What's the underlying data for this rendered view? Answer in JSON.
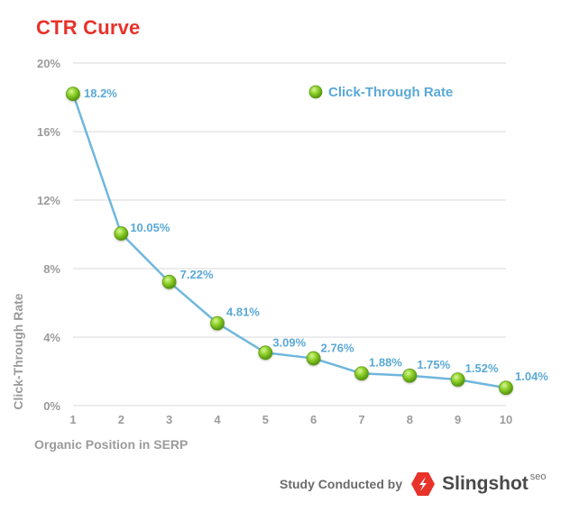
{
  "title": "CTR Curve",
  "footer": {
    "prefix": "Study Conducted by",
    "brand": "Slingshot",
    "brand_sup": "seo"
  },
  "colors": {
    "title": "#e8322a",
    "line": "#6fb7dd",
    "label": "#5aa9d6",
    "point": "#7cc31f",
    "grid": "#d9d9d9",
    "axis_text": "#9b9b9b",
    "logo": "#e8322a"
  },
  "chart_data": {
    "type": "line",
    "title": "CTR Curve",
    "xlabel": "Organic Position in SERP",
    "ylabel": "Click-Through Rate",
    "x": [
      1,
      2,
      3,
      4,
      5,
      6,
      7,
      8,
      9,
      10
    ],
    "x_tick_labels": [
      "1",
      "2",
      "3",
      "4",
      "5",
      "6",
      "7",
      "8",
      "9",
      "10"
    ],
    "y_ticks": [
      0,
      4,
      8,
      12,
      16,
      20
    ],
    "y_tick_labels": [
      "0%",
      "4%",
      "8%",
      "12%",
      "16%",
      "20%"
    ],
    "ylim": [
      0,
      20
    ],
    "grid": true,
    "legend": {
      "position": "top-right"
    },
    "series": [
      {
        "name": "Click-Through Rate",
        "values": [
          18.2,
          10.05,
          7.22,
          4.81,
          3.09,
          2.76,
          1.88,
          1.75,
          1.52,
          1.04
        ],
        "data_labels": [
          "18.2%",
          "10.05%",
          "7.22%",
          "4.81%",
          "3.09%",
          "2.76%",
          "1.88%",
          "1.75%",
          "1.52%",
          "1.04%"
        ]
      }
    ]
  }
}
